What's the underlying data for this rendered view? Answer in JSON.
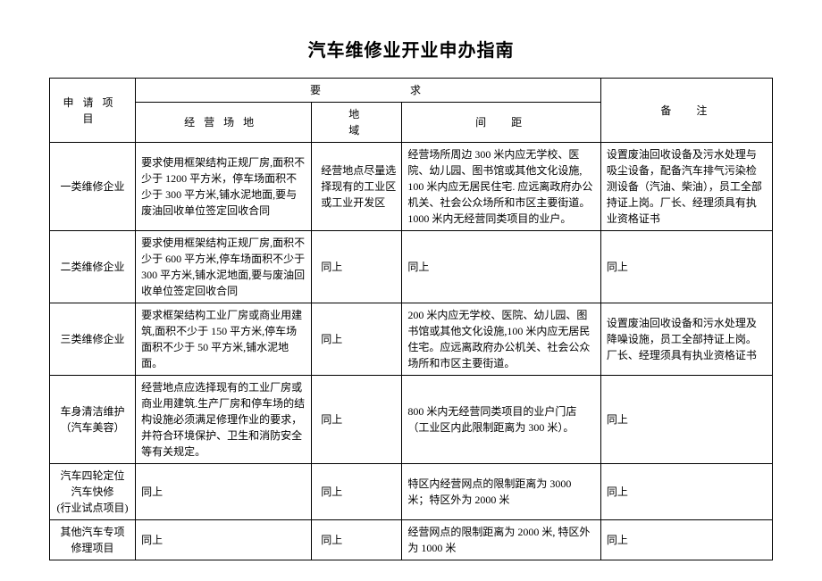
{
  "title": "汽车维修业开业申办指南",
  "headers": {
    "category": "申请项目",
    "requirements": "要求",
    "site": "经营场地",
    "area": "地域",
    "distance": "间距",
    "notes": "备注"
  },
  "rows": [
    {
      "category": "一类维修企业",
      "site": "要求使用框架结构正规厂房,面积不少于 1200 平方米，停车场面积不少于 300 平方米,铺水泥地面,要与废油回收单位签定回收合同",
      "area": "经营地点尽量选择现有的工业区或工业开发区",
      "distance": "经营场所周边 300 米内应无学校、医院、幼儿园、图书馆或其他文化设施, 100 米内应无居民住宅. 应远离政府办公机关、社会公众场所和市区主要街道。1000 米内无经营同类项目的业户。",
      "notes": "设置废油回收设备及污水处理与吸尘设备，配备汽车排气污染检测设备（汽油、柴油），员工全部持证上岗。厂长、经理须具有执业资格证书"
    },
    {
      "category": "二类维修企业",
      "site": "要求使用框架结构正规厂房,面积不少于 600 平方米,停车场面积不少于 300 平方米,铺水泥地面,要与废油回收单位签定回收合同",
      "area": "同上",
      "distance": "同上",
      "notes": "同上"
    },
    {
      "category": "三类维修企业",
      "site": "要求框架结构工业厂房或商业用建筑,面积不少于 150 平方米,停车场面积不少于 50 平方米,铺水泥地面。",
      "area": "同上",
      "distance": "200 米内应无学校、医院、幼儿园、图书馆或其他文化设施,100 米内应无居民住宅。应远离政府办公机关、社会公众场所和市区主要街道。",
      "notes": "设置废油回收设备和污水处理及降噪设施，员工全部持证上岗。厂长、经理须具有执业资格证书"
    },
    {
      "category": "车身清洁维护（汽车美容）",
      "site": "经营地点应选择现有的工业厂房或商业用建筑.生产厂房和停车场的结构设施必须满足修理作业的要求，并符合环境保护、卫生和消防安全等有关规定。",
      "area": "同上",
      "distance": "800 米内无经营同类项目的业户门店（工业区内此限制距离为 300 米）。",
      "notes": "同上"
    },
    {
      "category": "汽车四轮定位\n汽车快修\n(行业试点项目)",
      "site": "同上",
      "area": "同上",
      "distance": "特区内经营网点的限制距离为 3000 米；特区外为 2000 米",
      "notes": "同上"
    },
    {
      "category": "其他汽车专项修理项目",
      "site": "同上",
      "area": "同上",
      "distance": "经营网点的限制距离为 2000 米, 特区外为 1000 米",
      "notes": "同上"
    }
  ]
}
